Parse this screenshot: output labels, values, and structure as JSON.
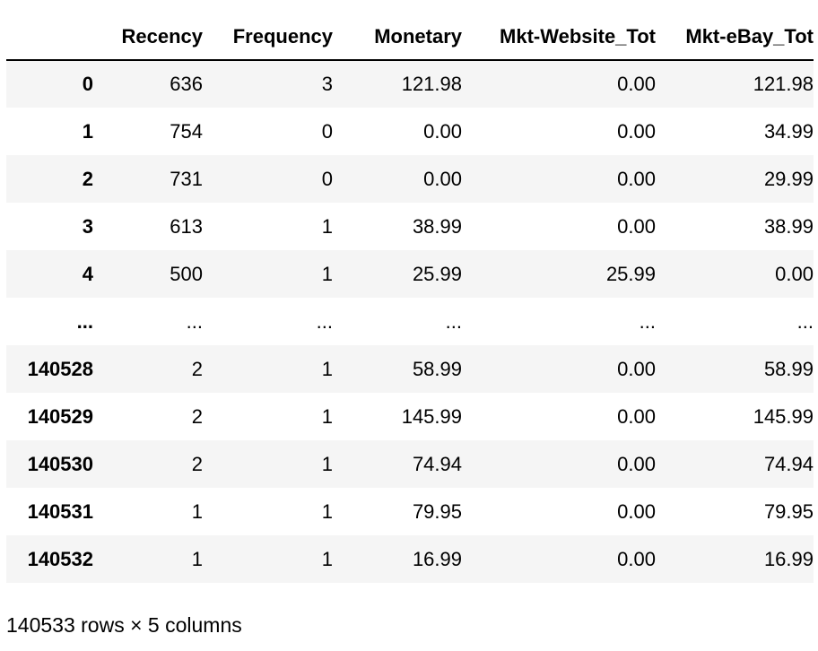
{
  "dataframe": {
    "columns": [
      "Recency",
      "Frequency",
      "Monetary",
      "Mkt-Website_Tot",
      "Mkt-eBay_Tot"
    ],
    "rows": [
      [
        "0",
        "636",
        "3",
        "121.98",
        "0.00",
        "121.98"
      ],
      [
        "1",
        "754",
        "0",
        "0.00",
        "0.00",
        "34.99"
      ],
      [
        "2",
        "731",
        "0",
        "0.00",
        "0.00",
        "29.99"
      ],
      [
        "3",
        "613",
        "1",
        "38.99",
        "0.00",
        "38.99"
      ],
      [
        "4",
        "500",
        "1",
        "25.99",
        "25.99",
        "0.00"
      ],
      [
        "...",
        "...",
        "...",
        "...",
        "...",
        "..."
      ],
      [
        "140528",
        "2",
        "1",
        "58.99",
        "0.00",
        "58.99"
      ],
      [
        "140529",
        "2",
        "1",
        "145.99",
        "0.00",
        "145.99"
      ],
      [
        "140530",
        "2",
        "1",
        "74.94",
        "0.00",
        "74.94"
      ],
      [
        "140531",
        "1",
        "1",
        "79.95",
        "0.00",
        "79.95"
      ],
      [
        "140532",
        "1",
        "1",
        "16.99",
        "0.00",
        "16.99"
      ]
    ],
    "shape_text": "140533 rows × 5 columns"
  }
}
